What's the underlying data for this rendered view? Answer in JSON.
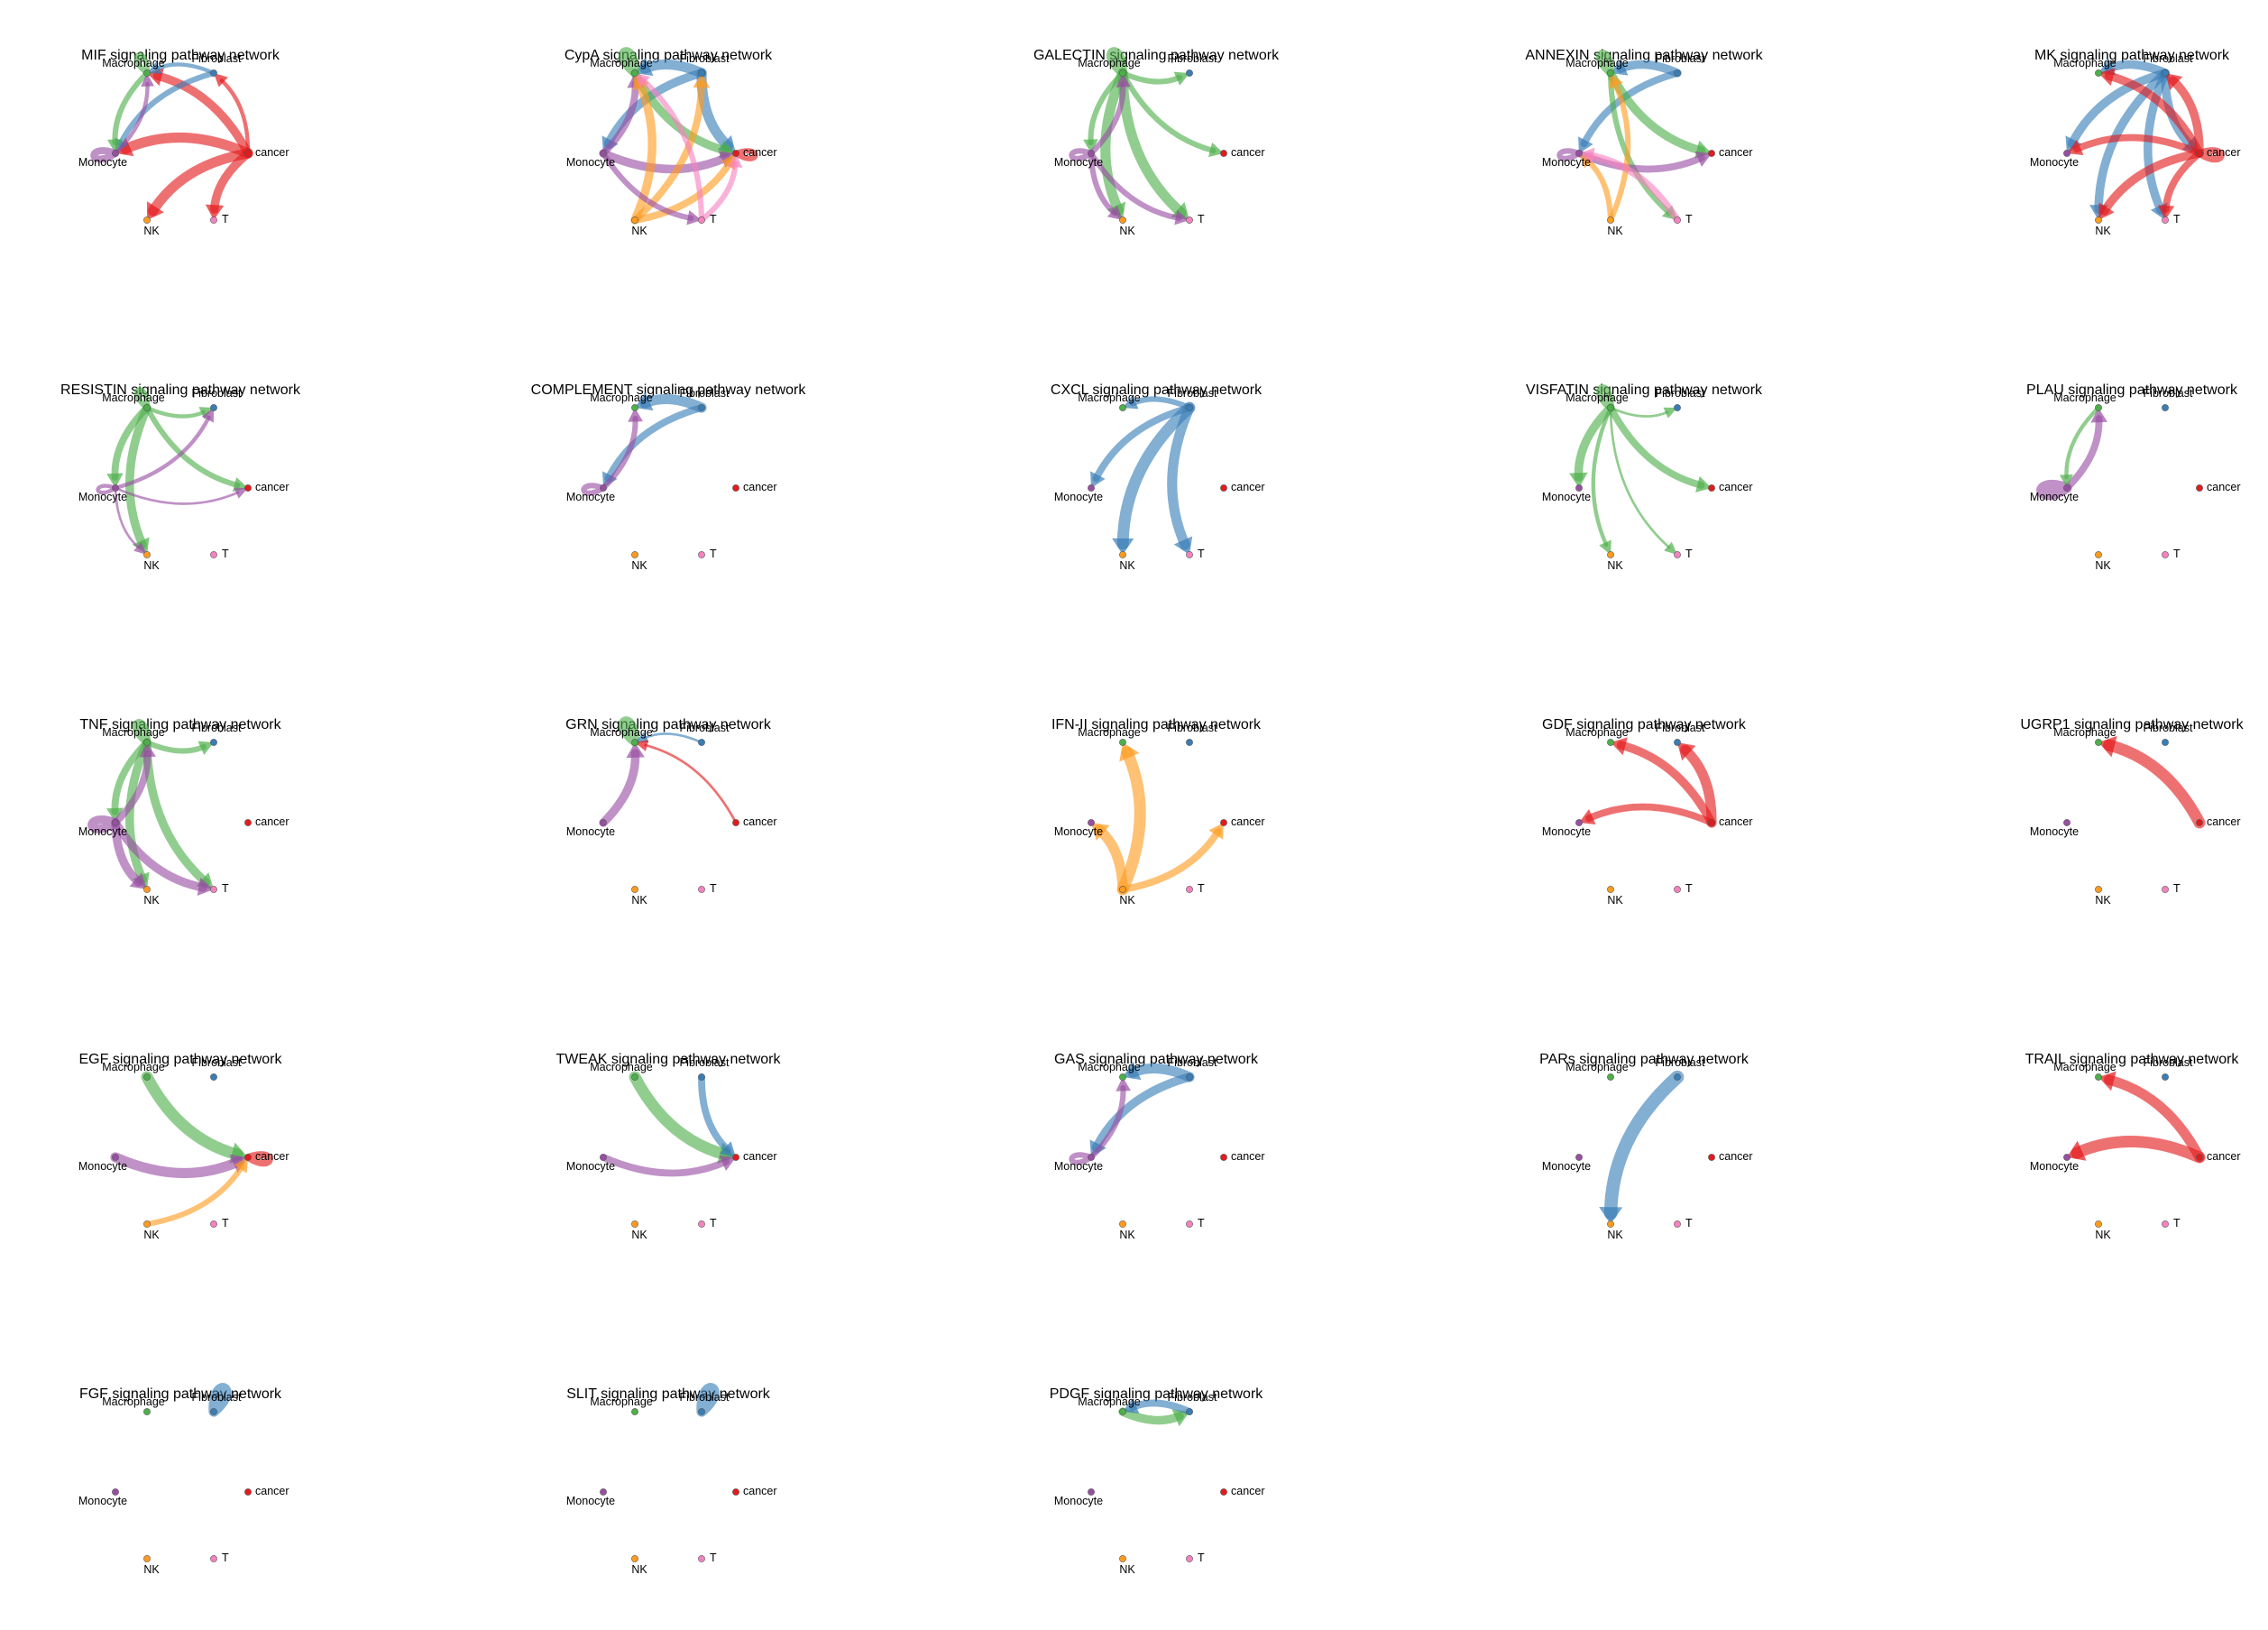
{
  "colors": {
    "Fibroblast": "#377EB8",
    "Macrophage": "#4DAF4A",
    "Monocyte": "#984EA3",
    "NK": "#FF9B1E",
    "T": "#F781BF",
    "cancer": "#E41A1C"
  },
  "nodes": [
    "Fibroblast",
    "Macrophage",
    "Monocyte",
    "NK",
    "T",
    "cancer"
  ],
  "chart_data": [
    {
      "type": "network",
      "title": "MIF signaling pathway network",
      "edges": [
        [
          "cancer",
          "Macrophage",
          5
        ],
        [
          "cancer",
          "Monocyte",
          6
        ],
        [
          "cancer",
          "NK",
          6
        ],
        [
          "cancer",
          "T",
          5
        ],
        [
          "cancer",
          "Fibroblast",
          2
        ],
        [
          "Fibroblast",
          "Monocyte",
          3
        ],
        [
          "Fibroblast",
          "Macrophage",
          2
        ],
        [
          "Macrophage",
          "Monocyte",
          3
        ],
        [
          "Monocyte",
          "Macrophage",
          2
        ],
        [
          "Monocyte",
          "Monocyte",
          4
        ],
        [
          "Macrophage",
          "Macrophage",
          3
        ]
      ]
    },
    {
      "type": "network",
      "title": "CypA signaling pathway network",
      "edges": [
        [
          "Fibroblast",
          "Macrophage",
          6
        ],
        [
          "Fibroblast",
          "cancer",
          6
        ],
        [
          "Fibroblast",
          "Monocyte",
          5
        ],
        [
          "Macrophage",
          "cancer",
          5
        ],
        [
          "Macrophage",
          "Macrophage",
          5
        ],
        [
          "Monocyte",
          "cancer",
          5
        ],
        [
          "Monocyte",
          "Macrophage",
          4
        ],
        [
          "NK",
          "Macrophage",
          5
        ],
        [
          "NK",
          "cancer",
          4
        ],
        [
          "NK",
          "Fibroblast",
          4
        ],
        [
          "T",
          "Macrophage",
          3
        ],
        [
          "T",
          "cancer",
          3
        ],
        [
          "cancer",
          "cancer",
          3
        ],
        [
          "Monocyte",
          "T",
          3
        ]
      ]
    },
    {
      "type": "network",
      "title": "GALECTIN signaling pathway network",
      "edges": [
        [
          "Macrophage",
          "NK",
          6
        ],
        [
          "Macrophage",
          "T",
          6
        ],
        [
          "Macrophage",
          "cancer",
          3
        ],
        [
          "Macrophage",
          "Fibroblast",
          3
        ],
        [
          "Macrophage",
          "Monocyte",
          3
        ],
        [
          "Macrophage",
          "Macrophage",
          5
        ],
        [
          "Monocyte",
          "NK",
          3
        ],
        [
          "Monocyte",
          "T",
          3
        ],
        [
          "Monocyte",
          "Macrophage",
          3
        ],
        [
          "Monocyte",
          "Monocyte",
          3
        ]
      ]
    },
    {
      "type": "network",
      "title": "ANNEXIN signaling pathway network",
      "edges": [
        [
          "Fibroblast",
          "Macrophage",
          5
        ],
        [
          "Fibroblast",
          "Monocyte",
          4
        ],
        [
          "Macrophage",
          "cancer",
          5
        ],
        [
          "Macrophage",
          "T",
          3
        ],
        [
          "Macrophage",
          "Macrophage",
          4
        ],
        [
          "Monocyte",
          "cancer",
          4
        ],
        [
          "NK",
          "Macrophage",
          3
        ],
        [
          "NK",
          "Monocyte",
          3
        ],
        [
          "T",
          "Monocyte",
          4
        ],
        [
          "Monocyte",
          "Monocyte",
          3
        ]
      ]
    },
    {
      "type": "network",
      "title": "MK signaling pathway network",
      "edges": [
        [
          "Fibroblast",
          "Macrophage",
          5
        ],
        [
          "Fibroblast",
          "Monocyte",
          5
        ],
        [
          "Fibroblast",
          "NK",
          5
        ],
        [
          "Fibroblast",
          "T",
          5
        ],
        [
          "Fibroblast",
          "cancer",
          5
        ],
        [
          "cancer",
          "Macrophage",
          5
        ],
        [
          "cancer",
          "Monocyte",
          4
        ],
        [
          "cancer",
          "NK",
          5
        ],
        [
          "cancer",
          "T",
          4
        ],
        [
          "cancer",
          "Fibroblast",
          5
        ],
        [
          "cancer",
          "cancer",
          4
        ]
      ]
    },
    {
      "type": "network",
      "title": "RESISTIN signaling pathway network",
      "edges": [
        [
          "Macrophage",
          "NK",
          5
        ],
        [
          "Macrophage",
          "Monocyte",
          4
        ],
        [
          "Macrophage",
          "cancer",
          3
        ],
        [
          "Macrophage",
          "Fibroblast",
          2
        ],
        [
          "Monocyte",
          "Fibroblast",
          2
        ],
        [
          "Monocyte",
          "cancer",
          1
        ],
        [
          "Monocyte",
          "NK",
          1
        ],
        [
          "Monocyte",
          "Monocyte",
          2
        ],
        [
          "Macrophage",
          "Macrophage",
          3
        ]
      ]
    },
    {
      "type": "network",
      "title": "COMPLEMENT signaling pathway network",
      "edges": [
        [
          "Fibroblast",
          "Macrophage",
          6
        ],
        [
          "Fibroblast",
          "Monocyte",
          4
        ],
        [
          "Monocyte",
          "Macrophage",
          3
        ],
        [
          "Monocyte",
          "Monocyte",
          3
        ]
      ]
    },
    {
      "type": "network",
      "title": "CXCL signaling pathway network",
      "edges": [
        [
          "Fibroblast",
          "NK",
          7
        ],
        [
          "Fibroblast",
          "T",
          6
        ],
        [
          "Fibroblast",
          "Monocyte",
          4
        ],
        [
          "Fibroblast",
          "Macrophage",
          3
        ]
      ]
    },
    {
      "type": "network",
      "title": "VISFATIN signaling pathway network",
      "edges": [
        [
          "Macrophage",
          "Monocyte",
          5
        ],
        [
          "Macrophage",
          "cancer",
          4
        ],
        [
          "Macrophage",
          "NK",
          2
        ],
        [
          "Macrophage",
          "T",
          1
        ],
        [
          "Macrophage",
          "Fibroblast",
          1
        ],
        [
          "Macrophage",
          "Macrophage",
          4
        ]
      ]
    },
    {
      "type": "network",
      "title": "PLAU signaling pathway network",
      "edges": [
        [
          "Monocyte",
          "Macrophage",
          4
        ],
        [
          "Monocyte",
          "Monocyte",
          6
        ],
        [
          "Macrophage",
          "Monocyte",
          2
        ]
      ]
    },
    {
      "type": "network",
      "title": "TNF signaling pathway network",
      "edges": [
        [
          "Macrophage",
          "NK",
          5
        ],
        [
          "Macrophage",
          "T",
          5
        ],
        [
          "Macrophage",
          "Monocyte",
          4
        ],
        [
          "Macrophage",
          "Fibroblast",
          3
        ],
        [
          "Monocyte",
          "NK",
          5
        ],
        [
          "Monocyte",
          "T",
          5
        ],
        [
          "Monocyte",
          "Macrophage",
          4
        ],
        [
          "Monocyte",
          "Monocyte",
          5
        ],
        [
          "Macrophage",
          "Macrophage",
          4
        ]
      ]
    },
    {
      "type": "network",
      "title": "GRN signaling pathway network",
      "edges": [
        [
          "Monocyte",
          "Macrophage",
          5
        ],
        [
          "Macrophage",
          "Macrophage",
          5
        ],
        [
          "Fibroblast",
          "Macrophage",
          1
        ],
        [
          "cancer",
          "Macrophage",
          1
        ]
      ]
    },
    {
      "type": "network",
      "title": "IFN-II signaling pathway network",
      "edges": [
        [
          "NK",
          "Macrophage",
          7
        ],
        [
          "NK",
          "Monocyte",
          6
        ],
        [
          "NK",
          "cancer",
          4
        ]
      ]
    },
    {
      "type": "network",
      "title": "GDF signaling pathway network",
      "edges": [
        [
          "cancer",
          "Macrophage",
          5
        ],
        [
          "cancer",
          "Fibroblast",
          6
        ],
        [
          "cancer",
          "Monocyte",
          4
        ]
      ]
    },
    {
      "type": "network",
      "title": "UGRP1 signaling pathway network",
      "edges": [
        [
          "cancer",
          "Macrophage",
          7
        ]
      ]
    },
    {
      "type": "network",
      "title": "EGF signaling pathway network",
      "edges": [
        [
          "Macrophage",
          "cancer",
          7
        ],
        [
          "Monocyte",
          "cancer",
          6
        ],
        [
          "NK",
          "cancer",
          3
        ],
        [
          "cancer",
          "cancer",
          4
        ]
      ]
    },
    {
      "type": "network",
      "title": "TWEAK signaling pathway network",
      "edges": [
        [
          "Macrophage",
          "cancer",
          7
        ],
        [
          "Fibroblast",
          "cancer",
          4
        ],
        [
          "Monocyte",
          "cancer",
          4
        ]
      ]
    },
    {
      "type": "network",
      "title": "GAS signaling pathway network",
      "edges": [
        [
          "Fibroblast",
          "Macrophage",
          6
        ],
        [
          "Fibroblast",
          "Monocyte",
          5
        ],
        [
          "Monocyte",
          "Macrophage",
          3
        ],
        [
          "Monocyte",
          "Monocyte",
          3
        ]
      ]
    },
    {
      "type": "network",
      "title": "PARs signaling pathway network",
      "edges": [
        [
          "Fibroblast",
          "NK",
          8
        ]
      ]
    },
    {
      "type": "network",
      "title": "TRAIL signaling pathway network",
      "edges": [
        [
          "cancer",
          "Macrophage",
          6
        ],
        [
          "cancer",
          "Monocyte",
          7
        ]
      ]
    },
    {
      "type": "network",
      "title": "FGF signaling pathway network",
      "edges": [
        [
          "Fibroblast",
          "Fibroblast",
          6
        ]
      ]
    },
    {
      "type": "network",
      "title": "SLIT signaling pathway network",
      "edges": [
        [
          "Fibroblast",
          "Fibroblast",
          6
        ]
      ]
    },
    {
      "type": "network",
      "title": "PDGF signaling pathway network",
      "edges": [
        [
          "Macrophage",
          "Fibroblast",
          5
        ],
        [
          "Fibroblast",
          "Macrophage",
          4
        ]
      ]
    }
  ]
}
